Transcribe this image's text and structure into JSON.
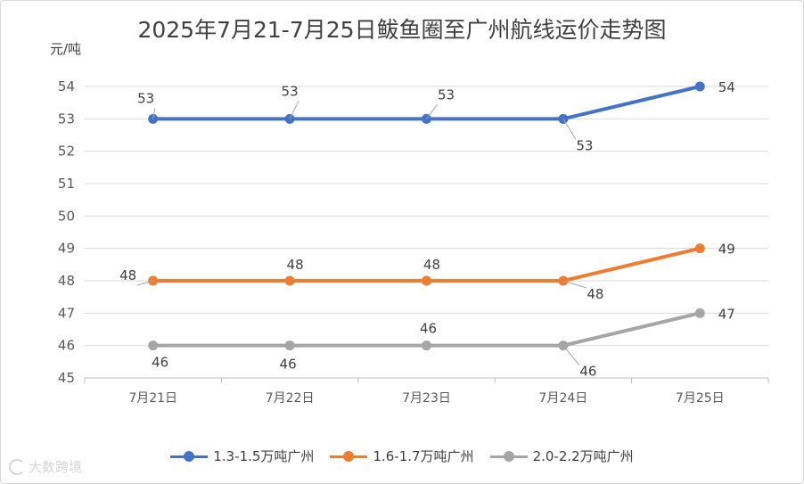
{
  "title": "2025年7月21-7月25日鲅鱼圈至广州航线运价走势图",
  "unit_label": "元/吨",
  "watermark": "大数跨境",
  "chart_data": {
    "type": "line",
    "title": "2025年7月21-7月25日鲅鱼圈至广州航线运价走势图",
    "ylabel": "元/吨",
    "xlabel": "",
    "categories": [
      "7月21日",
      "7月22日",
      "7月23日",
      "7月24日",
      "7月25日"
    ],
    "ylim": [
      45,
      54
    ],
    "yticks": [
      "45",
      "46",
      "47",
      "48",
      "49",
      "50",
      "51",
      "52",
      "53",
      "54"
    ],
    "grid": "horizontal",
    "legend_position": "bottom",
    "series": [
      {
        "name": "1.3-1.5万吨广州",
        "color": "#4472c4",
        "values": [
          53,
          53,
          53,
          53,
          54
        ]
      },
      {
        "name": "1.6-1.7万吨广州",
        "color": "#ed7d31",
        "values": [
          48,
          48,
          48,
          48,
          49
        ]
      },
      {
        "name": "2.0-2.2万吨广州",
        "color": "#a5a5a5",
        "values": [
          46,
          46,
          46,
          46,
          47
        ]
      }
    ]
  }
}
